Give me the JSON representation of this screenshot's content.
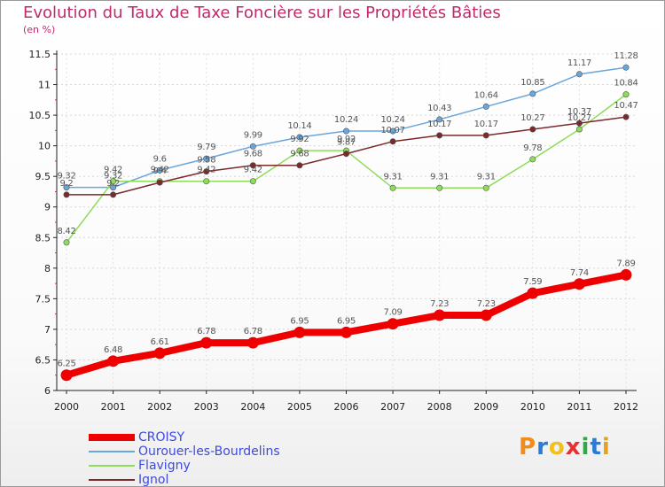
{
  "header": {
    "title": "Evolution du Taux de Taxe Foncière sur les Propriétés Bâties",
    "subtitle": "(en %)"
  },
  "logo": {
    "letters": [
      "P",
      "r",
      "o",
      "x",
      "i",
      "t",
      "i"
    ],
    "colors": [
      "#f08c1e",
      "#2a7ad8",
      "#f0c020",
      "#e83030",
      "#30a848",
      "#2a7ad8",
      "#e8a020"
    ]
  },
  "chart_data": {
    "type": "line",
    "x": [
      "2000",
      "2001",
      "2002",
      "2003",
      "2004",
      "2005",
      "2006",
      "2007",
      "2008",
      "2009",
      "2010",
      "2011",
      "2012"
    ],
    "ylim": [
      6,
      11.5
    ],
    "yticks": [
      "6",
      "6.5",
      "7",
      "7.5",
      "8",
      "8.5",
      "9",
      "9.5",
      "10",
      "10.5",
      "11",
      "11.5"
    ],
    "legend_position": "bottom-left",
    "series": [
      {
        "name": "CROISY",
        "color": "#ee0000",
        "values": [
          6.25,
          6.48,
          6.61,
          6.78,
          6.78,
          6.95,
          6.95,
          7.09,
          7.23,
          7.23,
          7.59,
          7.74,
          7.89
        ],
        "labels": [
          "6.25",
          "6.48",
          "6.61",
          "6.78",
          "6.78",
          "6.95",
          "6.95",
          "7.09",
          "7.23",
          "7.23",
          "7.59",
          "7.74",
          "7.89"
        ]
      },
      {
        "name": "Ourouer-les-Bourdelins",
        "color": "#6aa6dc",
        "values": [
          9.32,
          9.32,
          9.6,
          9.79,
          9.99,
          10.14,
          10.24,
          10.24,
          10.43,
          10.64,
          10.85,
          11.17,
          11.28
        ],
        "labels": [
          "9.32",
          "9.32",
          "9.6",
          "9.79",
          "9.99",
          "10.14",
          "10.24",
          "10.24",
          "10.43",
          "10.64",
          "10.85",
          "11.17",
          "11.28"
        ]
      },
      {
        "name": "Flavigny",
        "color": "#8edc5a",
        "values": [
          8.42,
          9.42,
          9.42,
          9.42,
          9.42,
          9.92,
          9.92,
          9.31,
          9.31,
          9.31,
          9.78,
          10.27,
          10.84
        ],
        "labels": [
          "8.42",
          "9.42",
          "9.42",
          "9.42",
          "9.42",
          "9.92",
          "9.92",
          "9.31",
          "9.31",
          "9.31",
          "9.78",
          "10.27",
          "10.84"
        ]
      },
      {
        "name": "Ignol",
        "color": "#7a2a2a",
        "values": [
          9.2,
          9.2,
          9.4,
          9.58,
          9.68,
          9.68,
          9.87,
          10.07,
          10.17,
          10.17,
          10.27,
          10.37,
          10.47
        ],
        "labels": [
          "9.2",
          "9.2",
          "9.4",
          "9.58",
          "9.68",
          "9.68",
          "9.87",
          "10.07",
          "10.17",
          "10.17",
          "10.27",
          "10.37",
          "10.47"
        ]
      }
    ]
  }
}
